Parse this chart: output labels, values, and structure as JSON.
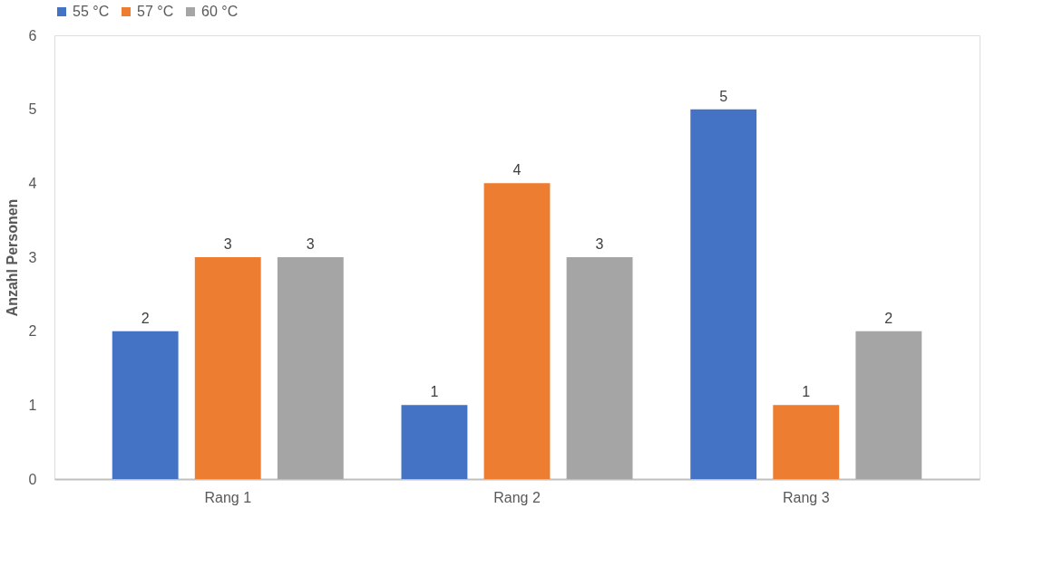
{
  "chart_data": {
    "type": "bar",
    "ylabel": "Anzahl Personen",
    "categories": [
      "Rang 1",
      "Rang 2",
      "Rang 3"
    ],
    "series": [
      {
        "name": "55 °C",
        "color": "#4472c4",
        "values": [
          2,
          1,
          5
        ]
      },
      {
        "name": "57 °C",
        "color": "#ed7d31",
        "values": [
          3,
          4,
          1
        ]
      },
      {
        "name": "60 °C",
        "color": "#a5a5a5",
        "values": [
          3,
          3,
          2
        ]
      }
    ],
    "ylim": [
      0,
      6
    ],
    "yticks": [
      0,
      1,
      2,
      3,
      4,
      5,
      6
    ],
    "grid": false,
    "legend": "top",
    "data_labels": true
  }
}
